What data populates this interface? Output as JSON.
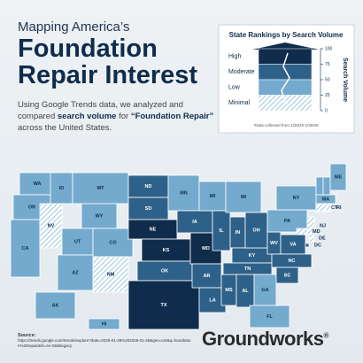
{
  "header": {
    "kicker": "Mapping America’s",
    "title": "Foundation Repair Interest",
    "intro": [
      {
        "text": "Using Google Trends data, we analyzed and compared ",
        "bold": false
      },
      {
        "text": "search volume",
        "bold": true
      },
      {
        "text": " for ",
        "bold": false
      },
      {
        "text": "“Foundation Repair”",
        "bold": true
      },
      {
        "text": " across the United States.",
        "bold": false
      }
    ]
  },
  "legend": {
    "title": "State Rankings by Search Volume",
    "levels": [
      {
        "name": "High",
        "color": "#0f2c4c",
        "hatched": false
      },
      {
        "name": "Moderate",
        "color": "#2e6189",
        "hatched": false
      },
      {
        "name": "Low",
        "color": "#74aacd",
        "hatched": false
      },
      {
        "name": "Minimal",
        "color": "#9cc6e0",
        "hatched": true
      }
    ],
    "axis_label": "Search Volume",
    "ylim": [
      0,
      100
    ],
    "yticks": [
      0,
      25,
      50,
      75,
      100
    ],
    "note": "*Data collected from 1/28/25-1/28/26"
  },
  "map": {
    "states": [
      {
        "abbr": "WA",
        "level": "Low"
      },
      {
        "abbr": "OR",
        "level": "Low"
      },
      {
        "abbr": "CA",
        "level": "Low"
      },
      {
        "abbr": "NV",
        "level": "Minimal"
      },
      {
        "abbr": "ID",
        "level": "Low"
      },
      {
        "abbr": "MT",
        "level": "Low"
      },
      {
        "abbr": "WY",
        "level": "Low"
      },
      {
        "abbr": "UT",
        "level": "Low"
      },
      {
        "abbr": "CO",
        "level": "Low"
      },
      {
        "abbr": "AZ",
        "level": "Low"
      },
      {
        "abbr": "NM",
        "level": "Minimal"
      },
      {
        "abbr": "ND",
        "level": "Moderate"
      },
      {
        "abbr": "SD",
        "level": "Moderate"
      },
      {
        "abbr": "NE",
        "level": "High"
      },
      {
        "abbr": "KS",
        "level": "High"
      },
      {
        "abbr": "OK",
        "level": "Moderate"
      },
      {
        "abbr": "TX",
        "level": "High"
      },
      {
        "abbr": "MN",
        "level": "Low"
      },
      {
        "abbr": "IA",
        "level": "Moderate"
      },
      {
        "abbr": "MO",
        "level": "High"
      },
      {
        "abbr": "AR",
        "level": "Moderate"
      },
      {
        "abbr": "LA",
        "level": "Moderate"
      },
      {
        "abbr": "WI",
        "level": "Low"
      },
      {
        "abbr": "IL",
        "level": "Moderate"
      },
      {
        "abbr": "MS",
        "level": "Moderate"
      },
      {
        "abbr": "MI",
        "level": "Low"
      },
      {
        "abbr": "IN",
        "level": "Moderate"
      },
      {
        "abbr": "KY",
        "level": "Moderate"
      },
      {
        "abbr": "TN",
        "level": "Moderate"
      },
      {
        "abbr": "AL",
        "level": "Moderate"
      },
      {
        "abbr": "GA",
        "level": "Low"
      },
      {
        "abbr": "FL",
        "level": "Low"
      },
      {
        "abbr": "OH",
        "level": "Moderate"
      },
      {
        "abbr": "WV",
        "level": "Moderate"
      },
      {
        "abbr": "VA",
        "level": "Moderate"
      },
      {
        "abbr": "NC",
        "level": "Moderate"
      },
      {
        "abbr": "SC",
        "level": "Moderate"
      },
      {
        "abbr": "PA",
        "level": "Low"
      },
      {
        "abbr": "NY",
        "level": "Low"
      },
      {
        "abbr": "VT",
        "level": "Low"
      },
      {
        "abbr": "NH",
        "level": "Low"
      },
      {
        "abbr": "ME",
        "level": "Low"
      },
      {
        "abbr": "MA",
        "level": "Low"
      },
      {
        "abbr": "CT",
        "level": "Minimal"
      },
      {
        "abbr": "RI",
        "level": "Minimal"
      },
      {
        "abbr": "NJ",
        "level": "Minimal"
      },
      {
        "abbr": "DE",
        "level": "Minimal"
      },
      {
        "abbr": "MD",
        "level": "Minimal"
      },
      {
        "abbr": "DC",
        "level": "Moderate"
      },
      {
        "abbr": "AK",
        "level": "Low"
      },
      {
        "abbr": "HI",
        "level": "Low"
      }
    ]
  },
  "source": {
    "label": "Source:",
    "url": "https://trends.google.com/trends/explore?date=2025-01-28%202026-01-28&geo=US&q=foundation%20repair&hl=en-GB&legacy"
  },
  "brand": {
    "name": "Groundworks",
    "mark": "®"
  }
}
